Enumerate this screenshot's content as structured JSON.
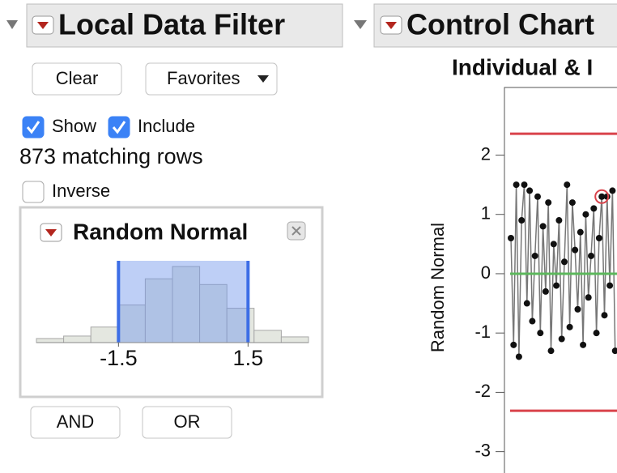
{
  "left_panel": {
    "title": "Local Data Filter",
    "buttons": [
      "Clear",
      "Favorites"
    ],
    "checkboxes": [
      {
        "label": "Show",
        "checked": true
      },
      {
        "label": "Include",
        "checked": true
      }
    ],
    "status": "873 matching rows",
    "inverse": {
      "label": "Inverse",
      "checked": false
    },
    "filter": {
      "title": "Random Normal",
      "chart_data": {
        "type": "histogram",
        "bins": [
          -3.4,
          -2.77,
          -2.14,
          -1.51,
          -0.88,
          -0.25,
          0.38,
          1.01,
          1.64,
          2.27,
          2.9
        ],
        "values": [
          5,
          8,
          19,
          46,
          78,
          93,
          71,
          42,
          15,
          7
        ],
        "color": "#e4e7e0",
        "xlim": [
          -3.4,
          2.9
        ],
        "xticks": [
          -1.5,
          1.5
        ],
        "ylim": [
          0,
          100
        ],
        "selection": [
          -1.5,
          1.5
        ],
        "selection_color": "#6f95ec"
      }
    },
    "logic_buttons": [
      "AND",
      "OR"
    ]
  },
  "right_panel": {
    "title": "Control Chart",
    "chart_data": {
      "type": "line",
      "subtitle": "Individual & I",
      "y_label": "Random Normal",
      "values": [
        0.6,
        -1.2,
        1.5,
        -1.4,
        0.9,
        1.5,
        -0.5,
        1.4,
        -0.8,
        0.3,
        1.3,
        -1.0,
        0.8,
        -0.3,
        1.2,
        -1.3,
        0.5,
        -0.2,
        0.9,
        -1.1,
        0.2,
        1.5,
        -0.9,
        1.2,
        0.4,
        -0.6,
        0.7,
        -1.2,
        1.0,
        -0.4,
        0.3,
        1.1,
        -1.0,
        0.6,
        1.3,
        -0.7,
        1.3,
        -0.2,
        1.4,
        -1.3
      ],
      "highlighted_index": 34,
      "color": "#777777",
      "marker_color": "#111111",
      "ylim": [
        -3.36,
        3.14
      ],
      "yticks": [
        2,
        1,
        0,
        -1,
        -2,
        -3
      ],
      "ucl": 2.36,
      "center": 0,
      "lcl": -2.31,
      "limit_color": "#d9434b",
      "center_color": "#5cb85c"
    }
  }
}
